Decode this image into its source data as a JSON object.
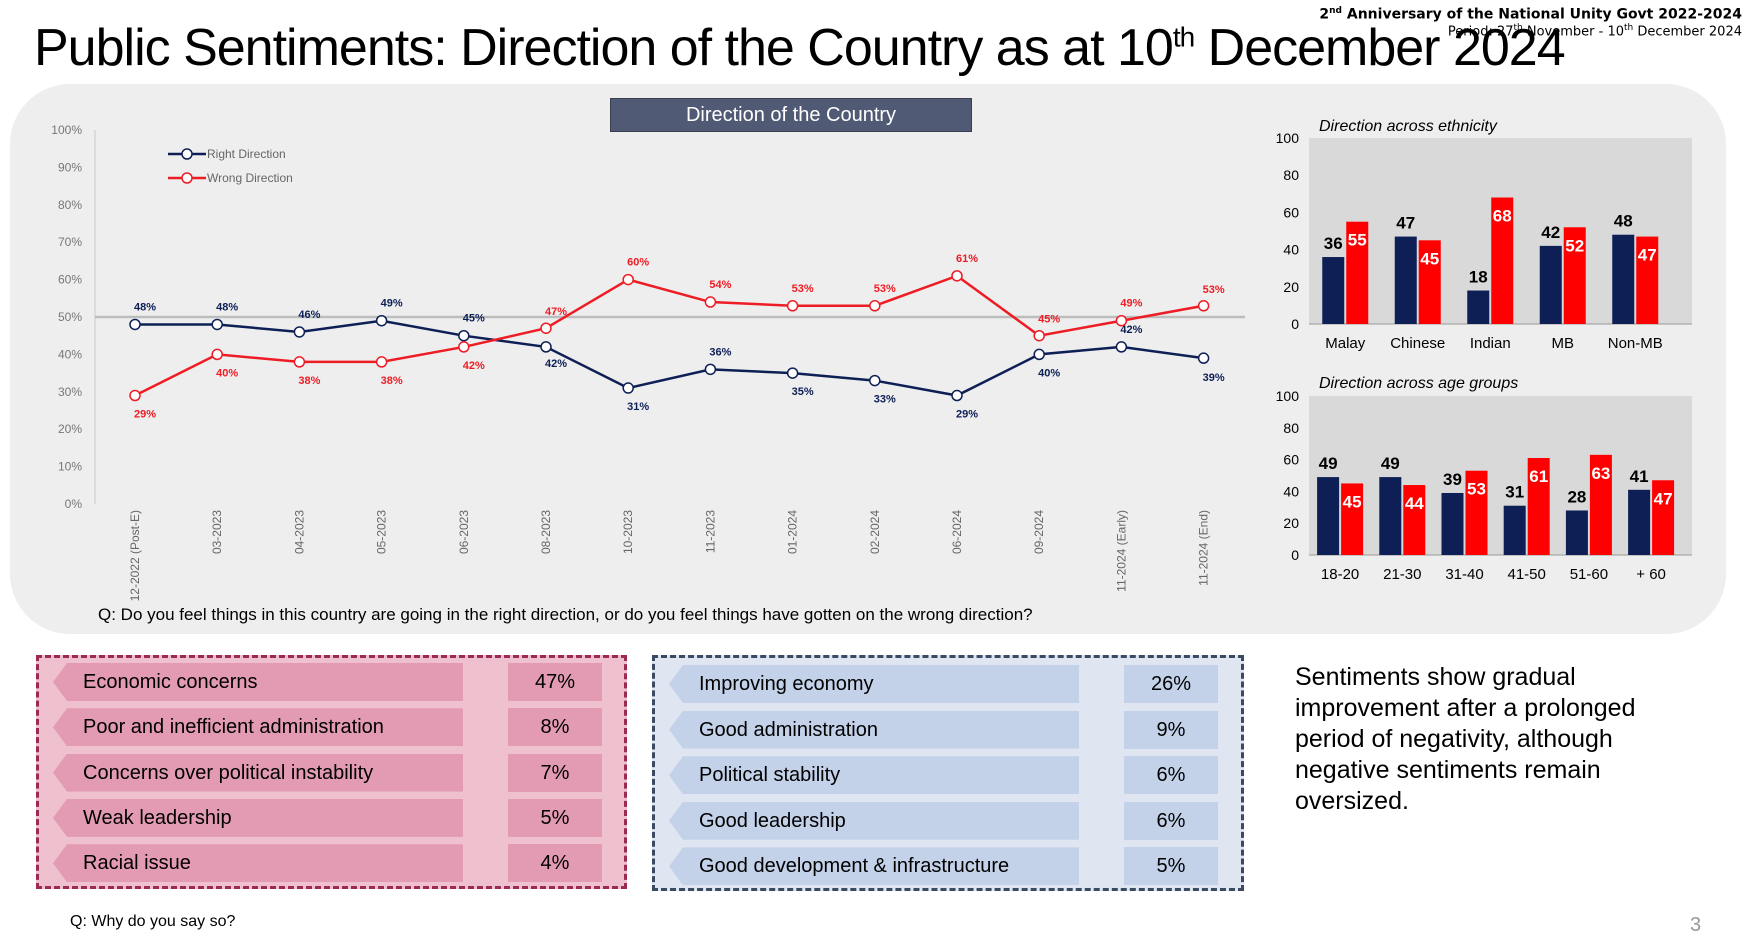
{
  "header": {
    "title_main": "Public Sentiments: Direction of the Country as at 10",
    "title_sup": "th",
    "title_end": " December 2024",
    "anniv_pre": "2",
    "anniv_sup": "nd",
    "anniv_text": " Anniversary of the National Unity Govt 2022-2024",
    "period_a": "Period: 27",
    "period_sup1": "th",
    "period_b": " November - 10",
    "period_sup2": "th",
    "period_c": " December 2024"
  },
  "chart_data": [
    {
      "type": "line",
      "title": "Direction of the Country",
      "categories": [
        "12-2022 (Post-E)",
        "03-2023",
        "04-2023",
        "05-2023",
        "06-2023",
        "08-2023",
        "10-2023",
        "11-2023",
        "01-2024",
        "02-2024",
        "06-2024",
        "09-2024",
        "11-2024 (Early)",
        "11-2024 (End)"
      ],
      "series": [
        {
          "name": "Right Direction",
          "color": "#0d1f55",
          "values": [
            48,
            48,
            46,
            49,
            45,
            42,
            31,
            36,
            35,
            33,
            29,
            40,
            42,
            39
          ],
          "labels": [
            "48%",
            "48%",
            "46%",
            "49%",
            "45%",
            "42%",
            "31%",
            "36%",
            "35%",
            "33%",
            "29%",
            "40%",
            "42%",
            "39%"
          ]
        },
        {
          "name": "Wrong Direction",
          "color": "#ee1c24",
          "values": [
            29,
            40,
            38,
            38,
            42,
            47,
            60,
            54,
            53,
            53,
            61,
            45,
            49,
            53
          ],
          "labels": [
            "29%",
            "40%",
            "38%",
            "38%",
            "42%",
            "47%",
            "60%",
            "54%",
            "53%",
            "53%",
            "61%",
            "45%",
            "49%",
            "53%"
          ]
        }
      ],
      "yticks": [
        "0%",
        "10%",
        "20%",
        "30%",
        "40%",
        "50%",
        "60%",
        "70%",
        "80%",
        "90%",
        "100%"
      ],
      "ylim": [
        0,
        100
      ],
      "reference_line": 50,
      "legend": "top-left"
    },
    {
      "type": "bar",
      "title": "Direction across ethnicity",
      "categories": [
        "Malay",
        "Chinese",
        "Indian",
        "MB",
        "Non-MB"
      ],
      "series": [
        {
          "color": "#0d1f55",
          "values": [
            36,
            47,
            18,
            42,
            48
          ]
        },
        {
          "color": "#ff0000",
          "values": [
            55,
            45,
            68,
            52,
            47
          ]
        }
      ],
      "yticks": [
        "0",
        "20",
        "40",
        "60",
        "80",
        "100"
      ],
      "ylim": [
        0,
        100
      ]
    },
    {
      "type": "bar",
      "title": "Direction across age groups",
      "categories": [
        "18-20",
        "21-30",
        "31-40",
        "41-50",
        "51-60",
        "+ 60"
      ],
      "series": [
        {
          "color": "#0d1f55",
          "values": [
            49,
            49,
            39,
            31,
            28,
            41
          ]
        },
        {
          "color": "#ff0000",
          "values": [
            45,
            44,
            53,
            61,
            63,
            47
          ]
        }
      ],
      "yticks": [
        "0",
        "20",
        "40",
        "60",
        "80",
        "100"
      ],
      "ylim": [
        0,
        100
      ]
    }
  ],
  "question1": "Q: Do you feel things in this country are going in the right direction, or do you feel things have gotten on the wrong direction?",
  "question2": "Q: Why do you say so?",
  "negative_reasons": [
    {
      "label": "Economic concerns",
      "value": "47%"
    },
    {
      "label": "Poor and inefficient administration",
      "value": "8%"
    },
    {
      "label": "Concerns over political instability",
      "value": "7%"
    },
    {
      "label": "Weak leadership",
      "value": "5%"
    },
    {
      "label": "Racial issue",
      "value": "4%"
    }
  ],
  "positive_reasons": [
    {
      "label": "Improving economy",
      "value": "26%"
    },
    {
      "label": "Good administration",
      "value": "9%"
    },
    {
      "label": "Political stability",
      "value": "6%"
    },
    {
      "label": "Good leadership",
      "value": "6%"
    },
    {
      "label": "Good development & infrastructure",
      "value": "5%"
    }
  ],
  "summary": "Sentiments show gradual improvement after a prolonged period of negativity, although negative sentiments remain oversized.",
  "page_number": "3"
}
